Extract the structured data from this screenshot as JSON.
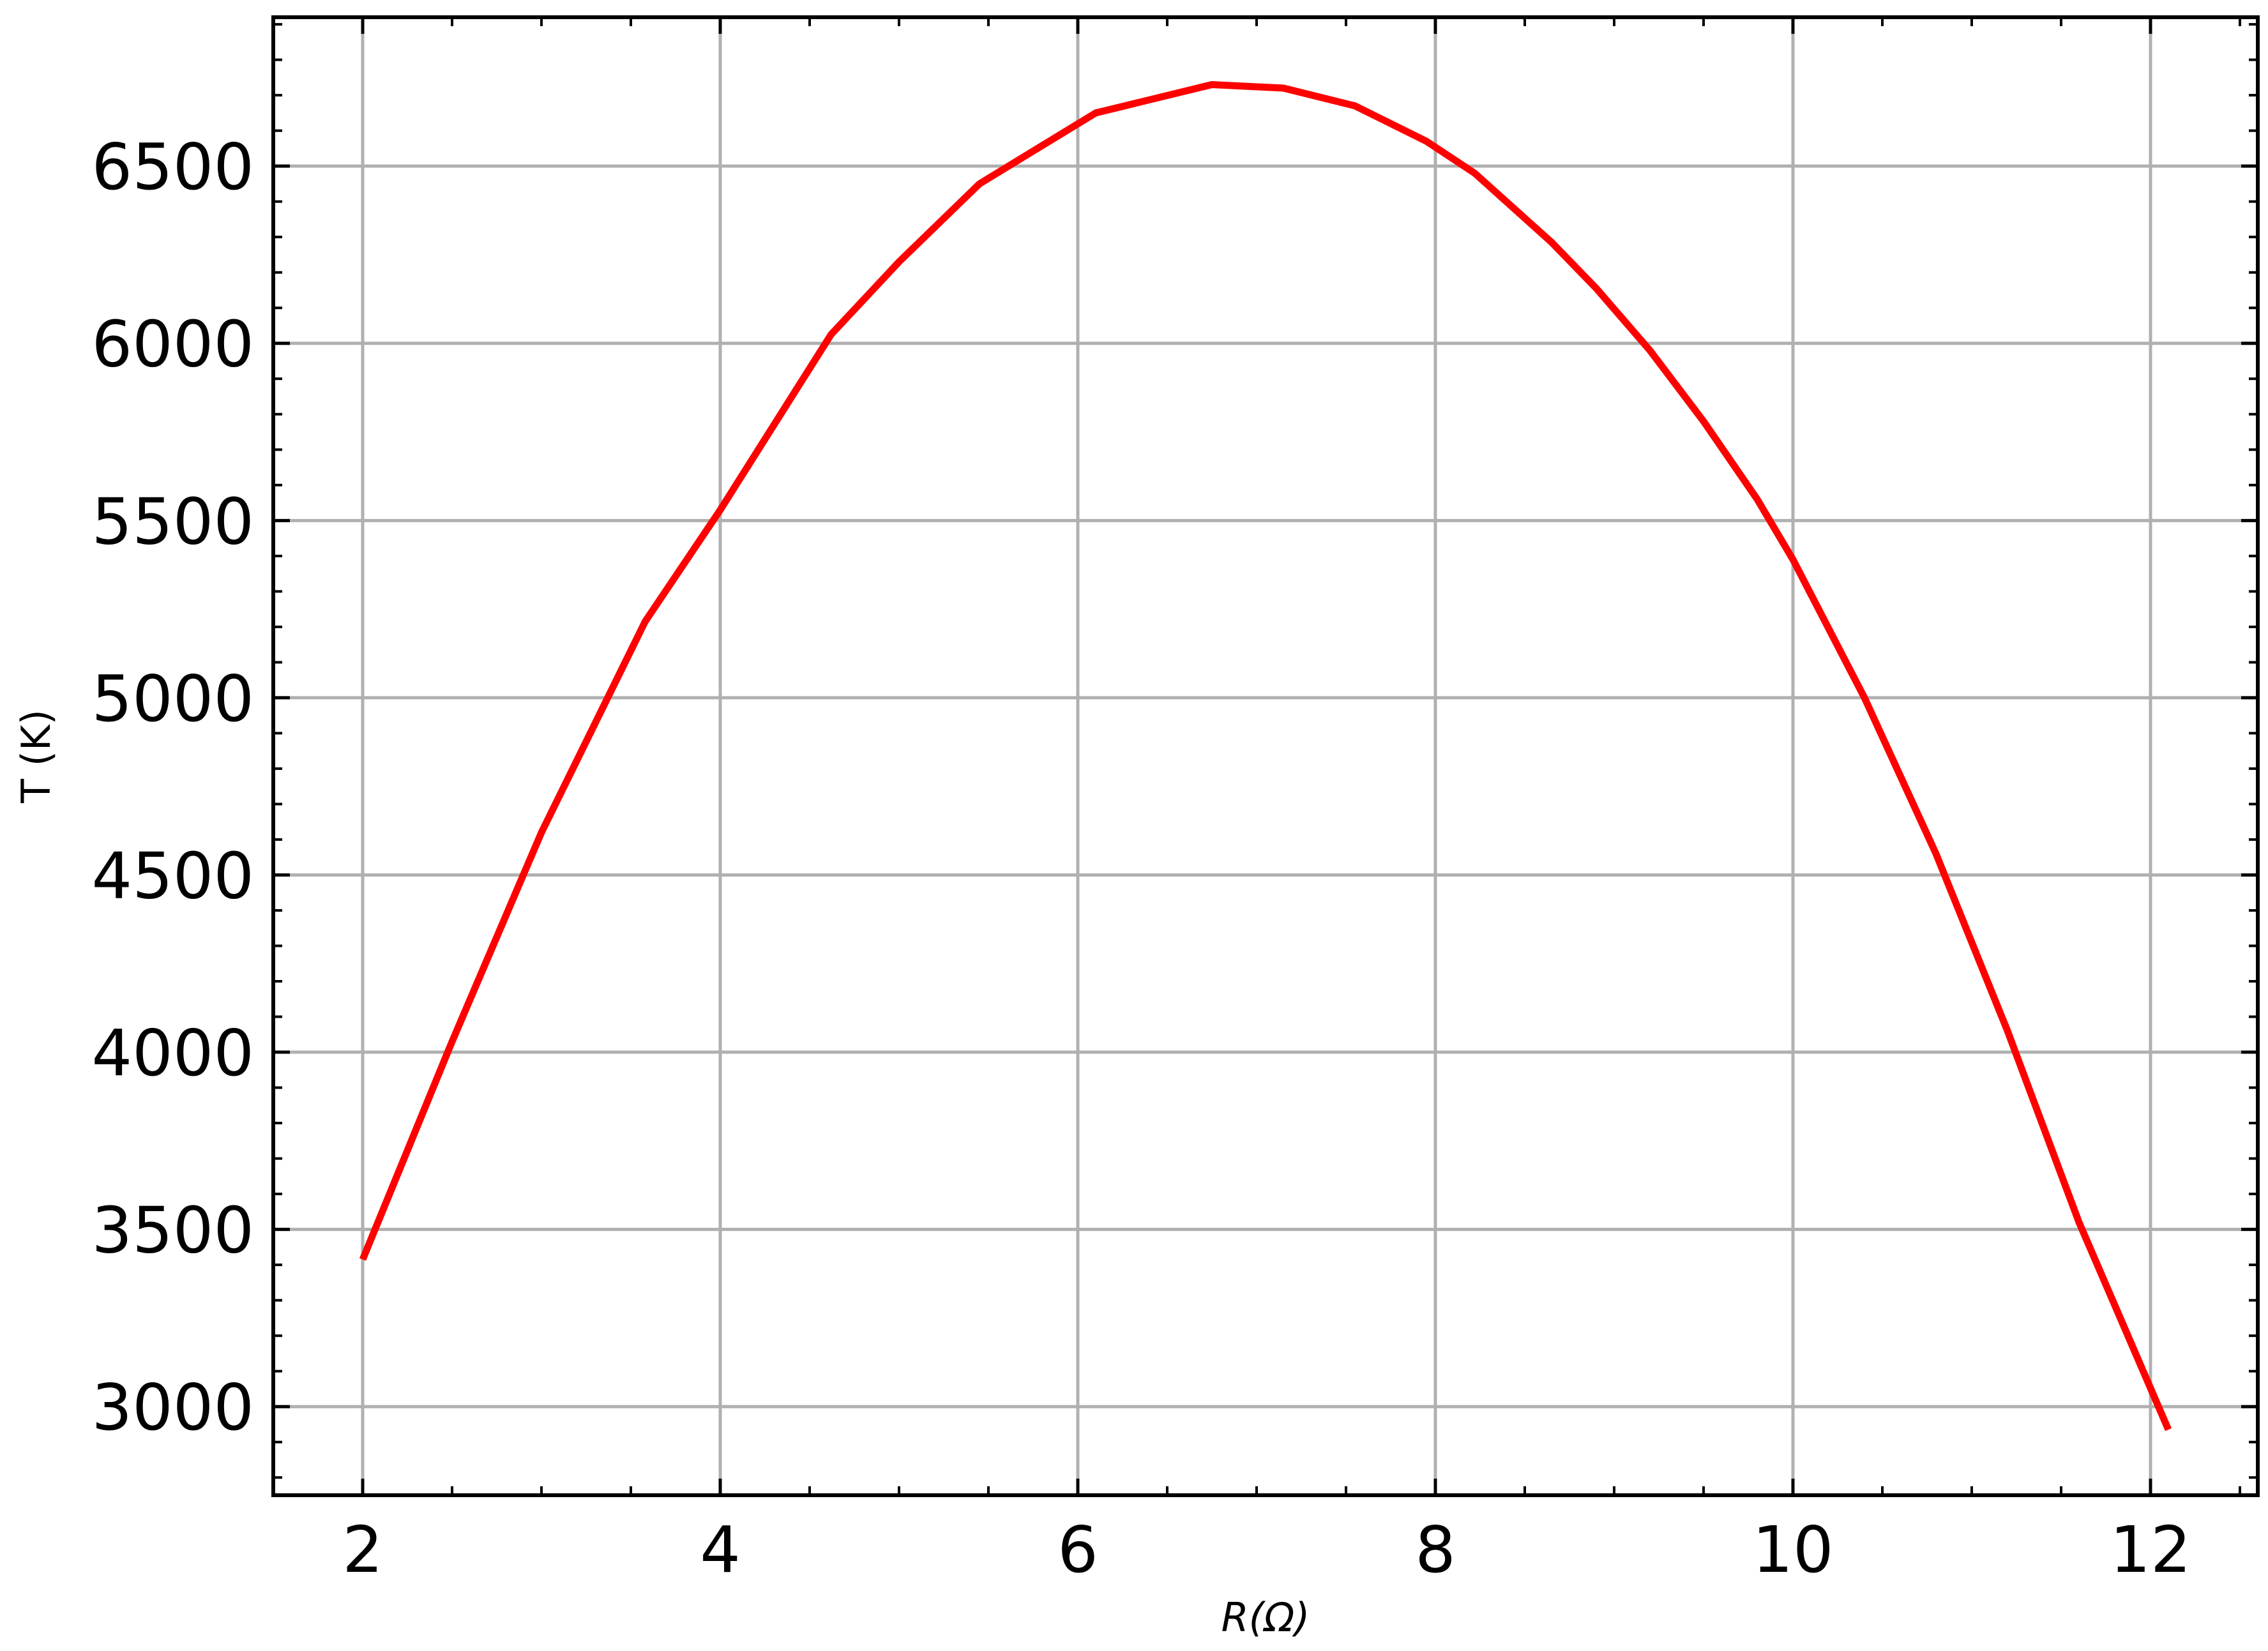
{
  "chart_data": {
    "type": "line",
    "xlabel": "R(Ω)",
    "ylabel": "T (K)",
    "xlim": [
      1.5,
      12.6
    ],
    "ylim": [
      2750,
      6920
    ],
    "x_ticks": [
      2,
      4,
      6,
      8,
      10,
      12
    ],
    "x_tick_labels": [
      "2",
      "4",
      "6",
      "8",
      "10",
      "12"
    ],
    "y_ticks": [
      3000,
      3500,
      4000,
      4500,
      5000,
      5500,
      6000,
      6500
    ],
    "y_tick_labels": [
      "3000",
      "3500",
      "4000",
      "4500",
      "5000",
      "5500",
      "6000",
      "6500"
    ],
    "x_minor_step": 0.5,
    "y_minor_step": 100,
    "grid": true,
    "colors": {
      "line": "#ff0000",
      "grid": "#b0b0b0",
      "axes": "#000000"
    },
    "series": [
      {
        "x": [
          2.0,
          2.5,
          3.0,
          3.58,
          4.0,
          4.62,
          5.0,
          5.45,
          6.1,
          6.75,
          7.15,
          7.55,
          7.95,
          8.22,
          8.65,
          8.9,
          9.2,
          9.5,
          9.8,
          10.0,
          10.4,
          10.8,
          11.2,
          11.6,
          12.1
        ],
        "y": [
          3415,
          4030,
          4620,
          5215,
          5530,
          6025,
          6230,
          6450,
          6650,
          6730,
          6720,
          6670,
          6570,
          6480,
          6285,
          6155,
          5980,
          5780,
          5560,
          5390,
          5000,
          4560,
          4060,
          3520,
          2935
        ]
      }
    ]
  }
}
